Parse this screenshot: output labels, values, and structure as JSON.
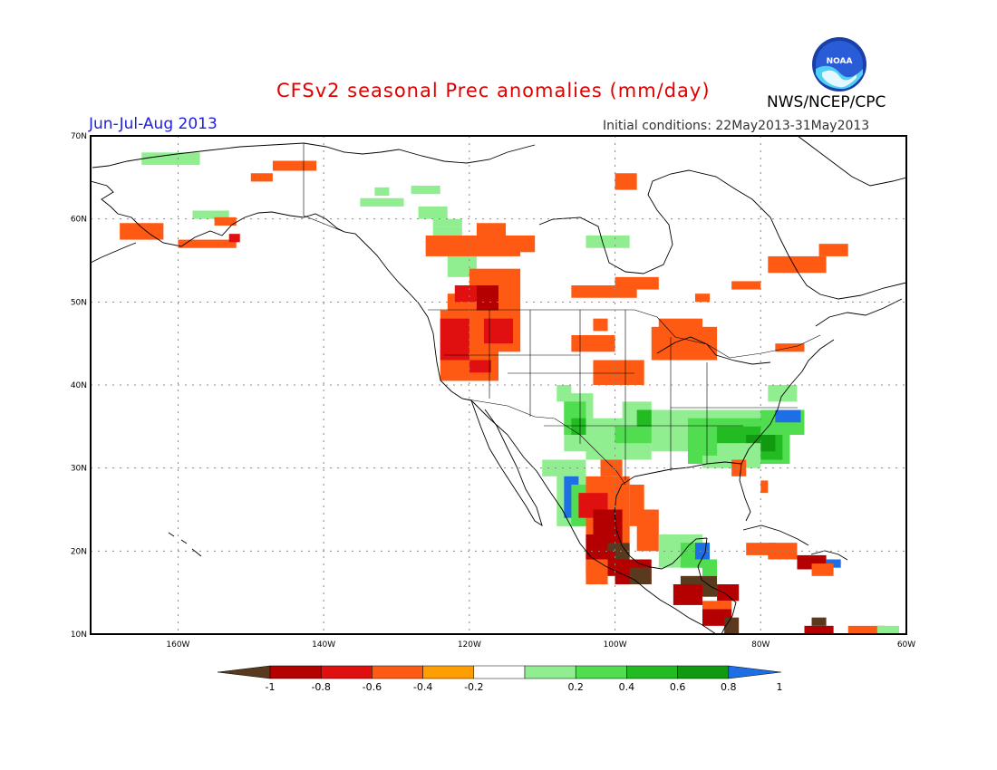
{
  "title": "CFSv2 seasonal Prec anomalies (mm/day)",
  "season": "Jun-Jul-Aug 2013",
  "initial_conditions": "Initial conditions: 22May2013-31May2013",
  "agency": "NWS/NCEP/CPC",
  "logo": {
    "icon": "noaa-logo-icon",
    "text": "NOAA"
  },
  "map": {
    "lon_range": [
      -172,
      -60
    ],
    "lat_range": [
      10,
      70
    ],
    "lat_labels": [
      "70N",
      "60N",
      "50N",
      "40N",
      "30N",
      "20N",
      "10N"
    ],
    "lon_labels": [
      "160W",
      "140W",
      "120W",
      "100W",
      "80W",
      "60W"
    ]
  },
  "colorbar": {
    "labels": [
      "-1",
      "-0.8",
      "-0.6",
      "-0.4",
      "-0.2",
      "0.2",
      "0.4",
      "0.6",
      "0.8",
      "1"
    ],
    "colors": [
      "#5a3a1e",
      "#b40000",
      "#e01010",
      "#ff5a14",
      "#ff9e00",
      "#ffffff",
      "#90ee90",
      "#50dd50",
      "#22bb22",
      "#119911",
      "#1e6ee6"
    ]
  }
}
